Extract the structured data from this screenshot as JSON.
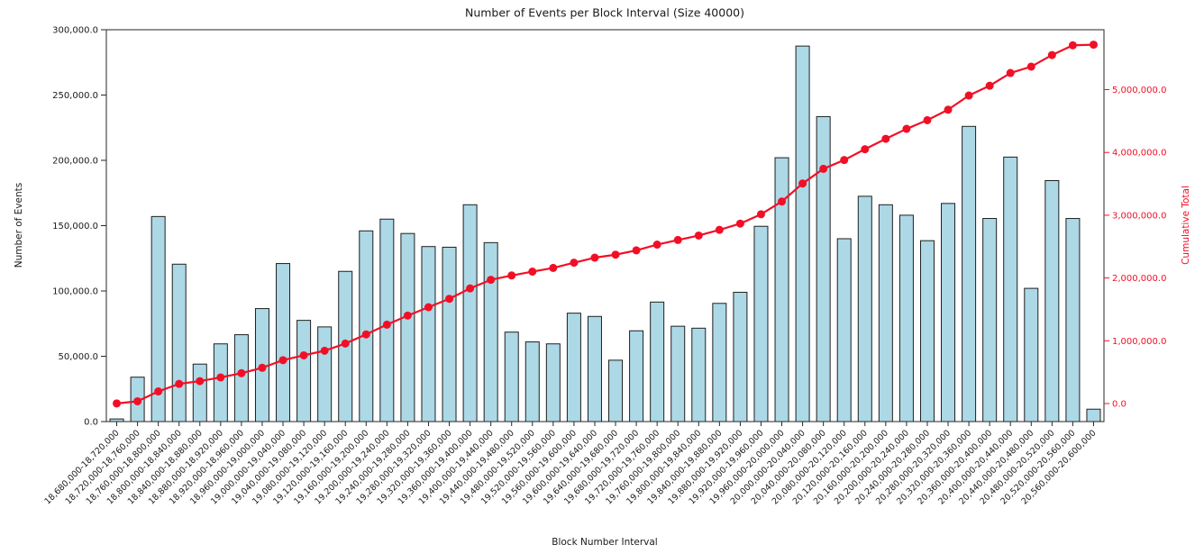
{
  "figure": {
    "background": "#ffffff",
    "title": "Number of Events per Block Interval (Size 40000)"
  },
  "chart_data": {
    "type": "bar",
    "title": "Number of Events per Block Interval (Size 40000)",
    "xlabel": "Block Number Interval",
    "ylabel_left": "Number of Events",
    "ylabel_right": "Cumulative Total",
    "grid": false,
    "legend": false,
    "bar_color": "#add8e6",
    "bar_edge_color": "#1f1f1f",
    "line_color": "#f20f26",
    "axis_color": "#262626",
    "categories": [
      "18,680,000-18,720,000",
      "18,720,000-18,760,000",
      "18,760,000-18,800,000",
      "18,800,000-18,840,000",
      "18,840,000-18,880,000",
      "18,880,000-18,920,000",
      "18,920,000-18,960,000",
      "18,960,000-19,000,000",
      "19,000,000-19,040,000",
      "19,040,000-19,080,000",
      "19,080,000-19,120,000",
      "19,120,000-19,160,000",
      "19,160,000-19,200,000",
      "19,200,000-19,240,000",
      "19,240,000-19,280,000",
      "19,280,000-19,320,000",
      "19,320,000-19,360,000",
      "19,360,000-19,400,000",
      "19,400,000-19,440,000",
      "19,440,000-19,480,000",
      "19,480,000-19,520,000",
      "19,520,000-19,560,000",
      "19,560,000-19,600,000",
      "19,600,000-19,640,000",
      "19,640,000-19,680,000",
      "19,680,000-19,720,000",
      "19,720,000-19,760,000",
      "19,760,000-19,800,000",
      "19,800,000-19,840,000",
      "19,840,000-19,880,000",
      "19,880,000-19,920,000",
      "19,920,000-19,960,000",
      "19,960,000-20,000,000",
      "20,000,000-20,040,000",
      "20,040,000-20,080,000",
      "20,080,000-20,120,000",
      "20,120,000-20,160,000",
      "20,160,000-20,200,000",
      "20,200,000-20,240,000",
      "20,240,000-20,280,000",
      "20,280,000-20,320,000",
      "20,320,000-20,360,000",
      "20,360,000-20,400,000",
      "20,400,000-20,440,000",
      "20,440,000-20,480,000",
      "20,480,000-20,520,000",
      "20,520,000-20,560,000",
      "20,560,000-20,600,000"
    ],
    "series": [
      {
        "name": "Number of Events",
        "type": "bar",
        "axis": "left",
        "values": [
          2000,
          34000,
          157000,
          120500,
          44000,
          59500,
          66500,
          86500,
          121000,
          77500,
          72500,
          115000,
          146000,
          155000,
          144000,
          134000,
          133500,
          166000,
          137000,
          68500,
          61000,
          59500,
          83000,
          80500,
          47000,
          69500,
          91500,
          73000,
          71500,
          90500,
          99000,
          149500,
          202000,
          287500,
          233500,
          140000,
          172500,
          166000,
          158000,
          138500,
          167000,
          226000,
          155500,
          202500,
          102000,
          184500,
          155500,
          9500
        ]
      },
      {
        "name": "Cumulative Total",
        "type": "line",
        "axis": "right",
        "marker": "circle",
        "values": [
          2000,
          36000,
          193000,
          313500,
          357500,
          417000,
          483500,
          570000,
          691000,
          768500,
          841000,
          956000,
          1102000,
          1257000,
          1401000,
          1535000,
          1668500,
          1834500,
          1971500,
          2040000,
          2101000,
          2160500,
          2243500,
          2324000,
          2371000,
          2440500,
          2532000,
          2605000,
          2676500,
          2767000,
          2866000,
          3015500,
          3217500,
          3505000,
          3738500,
          3878500,
          4051000,
          4217000,
          4375000,
          4513500,
          4680500,
          4906500,
          5062000,
          5264500,
          5366500,
          5551000,
          5706500,
          5716000
        ]
      }
    ],
    "left_axis": {
      "label": "Number of Events",
      "min": 0,
      "max": 300000,
      "ticks": [
        0,
        50000,
        100000,
        150000,
        200000,
        250000,
        300000
      ],
      "tick_labels": [
        "0.0",
        "50,000.0",
        "100,000.0",
        "150,000.0",
        "200,000.0",
        "250,000.0",
        "300,000.0"
      ]
    },
    "right_axis": {
      "label": "Cumulative Total",
      "color": "#f20f26",
      "ticks": [
        0,
        1000000,
        2000000,
        3000000,
        4000000,
        5000000
      ],
      "tick_labels": [
        "0.0",
        "1,000,000.0",
        "2,000,000.0",
        "3,000,000.0",
        "4,000,000.0",
        "5,000,000.0"
      ]
    }
  }
}
